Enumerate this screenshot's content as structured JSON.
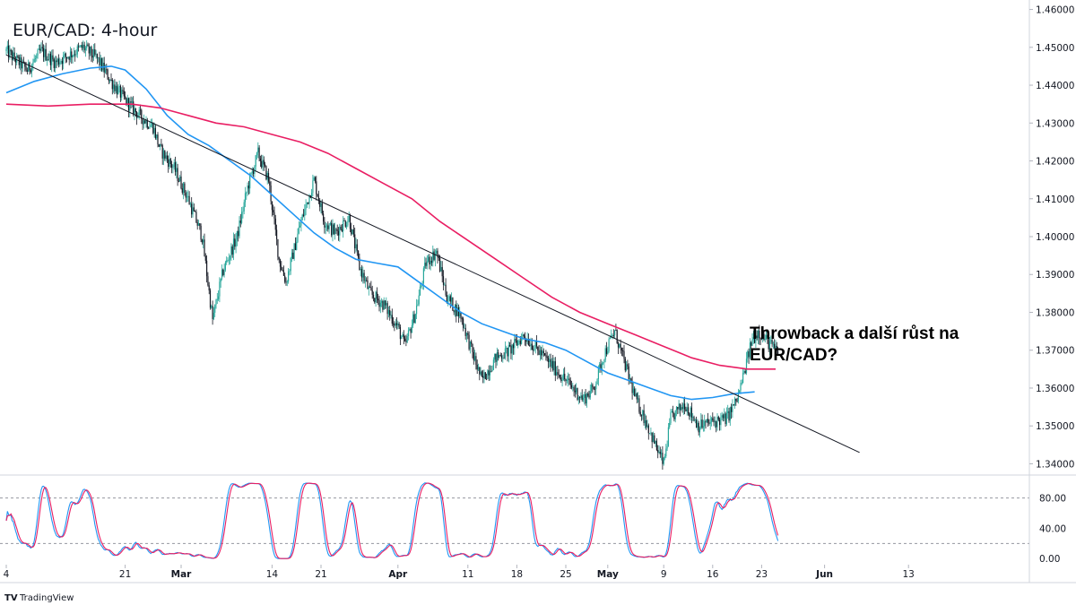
{
  "title": "EUR/CAD: 4-hour",
  "annotation": [
    "Throwback a další růst na",
    "EUR/CAD?"
  ],
  "branding": "TradingView",
  "colors": {
    "bull": "#26a69a",
    "bear": "#131722",
    "ma_fast": "#2196f3",
    "ma_slow": "#e91e63",
    "trendline": "#131722",
    "stoch_k": "#2196f3",
    "stoch_d": "#e91e63",
    "grid": "#e0e3eb"
  },
  "chart_data": [
    {
      "type": "candlestick",
      "title": "EUR/CAD: 4-hour",
      "ylim": [
        1.3375,
        1.4625
      ],
      "yticks": [
        "1.46000",
        "1.45000",
        "1.44000",
        "1.43000",
        "1.42000",
        "1.41000",
        "1.40000",
        "1.39000",
        "1.38000",
        "1.37000",
        "1.36000",
        "1.35000",
        "1.34000"
      ],
      "xticks": [
        {
          "label": "4",
          "day": 0,
          "bold": false
        },
        {
          "label": "21",
          "day": 17,
          "bold": false
        },
        {
          "label": "Mar",
          "day": 25,
          "bold": true
        },
        {
          "label": "14",
          "day": 38,
          "bold": false
        },
        {
          "label": "21",
          "day": 45,
          "bold": false
        },
        {
          "label": "Apr",
          "day": 56,
          "bold": true
        },
        {
          "label": "11",
          "day": 66,
          "bold": false
        },
        {
          "label": "18",
          "day": 73,
          "bold": false
        },
        {
          "label": "25",
          "day": 80,
          "bold": false
        },
        {
          "label": "May",
          "day": 86,
          "bold": true
        },
        {
          "label": "9",
          "day": 94,
          "bold": false
        },
        {
          "label": "16",
          "day": 101,
          "bold": false
        },
        {
          "label": "23",
          "day": 108,
          "bold": false
        },
        {
          "label": "Jun",
          "day": 117,
          "bold": true
        },
        {
          "label": "13",
          "day": 129,
          "bold": false
        }
      ],
      "xlim_days": [
        0,
        133
      ],
      "price_path": [
        [
          0,
          1.449
        ],
        [
          3,
          1.444
        ],
        [
          5,
          1.449
        ],
        [
          7,
          1.446
        ],
        [
          9,
          1.448
        ],
        [
          11,
          1.45
        ],
        [
          13,
          1.447
        ],
        [
          15,
          1.441
        ],
        [
          17,
          1.436
        ],
        [
          19,
          1.432
        ],
        [
          21,
          1.429
        ],
        [
          22,
          1.423
        ],
        [
          24,
          1.418
        ],
        [
          26,
          1.41
        ],
        [
          28,
          1.4
        ],
        [
          29.5,
          1.378
        ],
        [
          31,
          1.391
        ],
        [
          33,
          1.4
        ],
        [
          34.5,
          1.413
        ],
        [
          36,
          1.422
        ],
        [
          37.5,
          1.415
        ],
        [
          39,
          1.394
        ],
        [
          40,
          1.388
        ],
        [
          42,
          1.403
        ],
        [
          44,
          1.415
        ],
        [
          45.5,
          1.404
        ],
        [
          47,
          1.401
        ],
        [
          49,
          1.405
        ],
        [
          50.5,
          1.392
        ],
        [
          52,
          1.385
        ],
        [
          54,
          1.382
        ],
        [
          56,
          1.376
        ],
        [
          57,
          1.371
        ],
        [
          58.5,
          1.38
        ],
        [
          60,
          1.393
        ],
        [
          61.5,
          1.396
        ],
        [
          63,
          1.384
        ],
        [
          65,
          1.379
        ],
        [
          66.5,
          1.37
        ],
        [
          68,
          1.362
        ],
        [
          70,
          1.368
        ],
        [
          72,
          1.37
        ],
        [
          74,
          1.374
        ],
        [
          75.5,
          1.371
        ],
        [
          77,
          1.368
        ],
        [
          79,
          1.364
        ],
        [
          81,
          1.36
        ],
        [
          82.5,
          1.357
        ],
        [
          84,
          1.36
        ],
        [
          85.5,
          1.369
        ],
        [
          87,
          1.375
        ],
        [
          88.5,
          1.366
        ],
        [
          90,
          1.357
        ],
        [
          91.5,
          1.351
        ],
        [
          93,
          1.344
        ],
        [
          94,
          1.34
        ],
        [
          95,
          1.352
        ],
        [
          97,
          1.356
        ],
        [
          99,
          1.35
        ],
        [
          101,
          1.351
        ],
        [
          103,
          1.352
        ],
        [
          104.5,
          1.357
        ],
        [
          105.5,
          1.364
        ],
        [
          106.5,
          1.372
        ],
        [
          107.5,
          1.375
        ],
        [
          108.5,
          1.373
        ],
        [
          109.5,
          1.371
        ],
        [
          110.5,
          1.369
        ]
      ],
      "series": [
        {
          "name": "",
          "type": "ma",
          "values": [
            [
              0,
              1.438
            ],
            [
              4,
              1.441
            ],
            [
              8,
              1.443
            ],
            [
              12,
              1.4445
            ],
            [
              15,
              1.445
            ],
            [
              17,
              1.444
            ],
            [
              20,
              1.439
            ],
            [
              23,
              1.432
            ],
            [
              26,
              1.427
            ],
            [
              29,
              1.424
            ],
            [
              32,
              1.42
            ],
            [
              35,
              1.416
            ],
            [
              38,
              1.411
            ],
            [
              41,
              1.406
            ],
            [
              44,
              1.401
            ],
            [
              47,
              1.397
            ],
            [
              50,
              1.394
            ],
            [
              53,
              1.393
            ],
            [
              56,
              1.392
            ],
            [
              59,
              1.388
            ],
            [
              62,
              1.384
            ],
            [
              65,
              1.38
            ],
            [
              68,
              1.377
            ],
            [
              71,
              1.375
            ],
            [
              74,
              1.373
            ],
            [
              77,
              1.372
            ],
            [
              80,
              1.37
            ],
            [
              83,
              1.367
            ],
            [
              86,
              1.364
            ],
            [
              89,
              1.362
            ],
            [
              92,
              1.36
            ],
            [
              95,
              1.358
            ],
            [
              98,
              1.357
            ],
            [
              101,
              1.3575
            ],
            [
              104,
              1.3585
            ],
            [
              107,
              1.359
            ]
          ]
        },
        {
          "name": "",
          "type": "ma",
          "values": [
            [
              0,
              1.435
            ],
            [
              6,
              1.4345
            ],
            [
              12,
              1.435
            ],
            [
              18,
              1.435
            ],
            [
              22,
              1.434
            ],
            [
              26,
              1.432
            ],
            [
              30,
              1.43
            ],
            [
              34,
              1.429
            ],
            [
              38,
              1.427
            ],
            [
              42,
              1.425
            ],
            [
              46,
              1.422
            ],
            [
              50,
              1.418
            ],
            [
              54,
              1.414
            ],
            [
              58,
              1.41
            ],
            [
              62,
              1.404
            ],
            [
              66,
              1.399
            ],
            [
              70,
              1.394
            ],
            [
              74,
              1.389
            ],
            [
              78,
              1.384
            ],
            [
              82,
              1.38
            ],
            [
              86,
              1.377
            ],
            [
              90,
              1.374
            ],
            [
              94,
              1.371
            ],
            [
              98,
              1.368
            ],
            [
              102,
              1.366
            ],
            [
              106,
              1.365
            ],
            [
              110,
              1.365
            ]
          ]
        },
        {
          "name": "",
          "type": "trendline",
          "values": [
            [
              0,
              1.448
            ],
            [
              122,
              1.343
            ]
          ]
        }
      ],
      "sub_panel": {
        "type": "stochastic",
        "ylim": [
          -8,
          108
        ],
        "yticks": [
          "80.00",
          "40.00",
          "0.00"
        ],
        "levels": [
          80,
          20
        ]
      }
    }
  ]
}
